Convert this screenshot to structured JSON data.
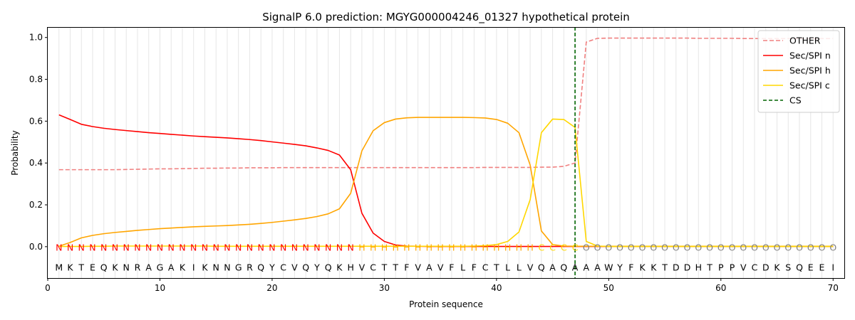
{
  "chart_data": {
    "type": "line",
    "title": "SignalP 6.0 prediction: MGYG000004246_01327 hypothetical protein",
    "xlabel": "Protein sequence",
    "ylabel": "Probability",
    "xlim": [
      0,
      71
    ],
    "ylim": [
      -0.15,
      1.05
    ],
    "x_ticks": [
      0,
      10,
      20,
      30,
      40,
      50,
      60,
      70
    ],
    "y_ticks": [
      0.0,
      0.2,
      0.4,
      0.6,
      0.8,
      1.0
    ],
    "grid": "vertical lines at each residue",
    "legend_position": "top-right",
    "sequence": "MKTEQKNRAGAKIKNNGRQYCVQYQKHVCTTFVAVFLFCTLLVQAQAAAWYFKKTDDHTPPVCDKSQEEI",
    "labels": "NNNNNNNNNNNNNNNNNNNNNNNNNNNHHHHHHHHHHHHHHHHCCCCOOOOOOOOOOOOOOOOOOOOOOO",
    "label_colors": {
      "N": "#ff0000",
      "H": "#ffa500",
      "C": "#ffd700",
      "O": "#808080"
    },
    "cleavage_site": 47,
    "series": [
      {
        "name": "OTHER",
        "color": "#f08080",
        "dash": true,
        "values": [
          0.368,
          0.368,
          0.368,
          0.368,
          0.368,
          0.368,
          0.369,
          0.37,
          0.371,
          0.372,
          0.372,
          0.373,
          0.374,
          0.375,
          0.375,
          0.376,
          0.376,
          0.377,
          0.377,
          0.377,
          0.378,
          0.378,
          0.378,
          0.378,
          0.378,
          0.378,
          0.378,
          0.378,
          0.378,
          0.378,
          0.378,
          0.378,
          0.378,
          0.378,
          0.378,
          0.378,
          0.378,
          0.378,
          0.379,
          0.379,
          0.379,
          0.379,
          0.379,
          0.38,
          0.38,
          0.384,
          0.4,
          0.978,
          0.996,
          0.997,
          0.997,
          0.997,
          0.997,
          0.997,
          0.997,
          0.997,
          0.997,
          0.996,
          0.996,
          0.996,
          0.996,
          0.995,
          0.995,
          0.995,
          0.995,
          0.995,
          0.995,
          0.995,
          0.995,
          0.995
        ]
      },
      {
        "name": "Sec/SPI n",
        "color": "#ff0000",
        "dash": false,
        "values": [
          0.63,
          0.608,
          0.585,
          0.574,
          0.566,
          0.56,
          0.555,
          0.55,
          0.545,
          0.541,
          0.537,
          0.533,
          0.529,
          0.526,
          0.523,
          0.52,
          0.516,
          0.512,
          0.507,
          0.501,
          0.495,
          0.489,
          0.482,
          0.472,
          0.46,
          0.438,
          0.368,
          0.16,
          0.065,
          0.025,
          0.008,
          0.003,
          0.002,
          0.001,
          0.001,
          0.001,
          0.001,
          0.001,
          0.001,
          0.001,
          0.001,
          0.001,
          0.001,
          0.001,
          0.001,
          0.001,
          0.001,
          0.001,
          0.001,
          0.001,
          0.001,
          0.001,
          0.001,
          0.001,
          0.001,
          0.001,
          0.001,
          0.001,
          0.001,
          0.001,
          0.001,
          0.001,
          0.001,
          0.001,
          0.001,
          0.001,
          0.001,
          0.001,
          0.001,
          0.001
        ]
      },
      {
        "name": "Sec/SPI h",
        "color": "#ffa500",
        "dash": false,
        "values": [
          0.002,
          0.02,
          0.042,
          0.054,
          0.062,
          0.068,
          0.073,
          0.078,
          0.082,
          0.086,
          0.089,
          0.092,
          0.095,
          0.097,
          0.099,
          0.101,
          0.104,
          0.107,
          0.111,
          0.116,
          0.122,
          0.128,
          0.135,
          0.144,
          0.157,
          0.181,
          0.255,
          0.458,
          0.554,
          0.593,
          0.61,
          0.616,
          0.618,
          0.618,
          0.618,
          0.618,
          0.618,
          0.617,
          0.615,
          0.608,
          0.59,
          0.545,
          0.39,
          0.075,
          0.01,
          0.003,
          0.002,
          0.002,
          0.002,
          0.002,
          0.002,
          0.002,
          0.002,
          0.002,
          0.002,
          0.002,
          0.002,
          0.002,
          0.002,
          0.002,
          0.002,
          0.002,
          0.002,
          0.002,
          0.002,
          0.002,
          0.002,
          0.002,
          0.002,
          0.002
        ]
      },
      {
        "name": "Sec/SPI c",
        "color": "#ffd700",
        "dash": false,
        "values": [
          0.001,
          0.001,
          0.001,
          0.002,
          0.002,
          0.003,
          0.003,
          0.003,
          0.003,
          0.003,
          0.003,
          0.003,
          0.003,
          0.003,
          0.002,
          0.002,
          0.002,
          0.002,
          0.002,
          0.002,
          0.002,
          0.002,
          0.002,
          0.002,
          0.002,
          0.002,
          0.002,
          0.002,
          0.002,
          0.002,
          0.002,
          0.002,
          0.002,
          0.002,
          0.002,
          0.002,
          0.002,
          0.003,
          0.005,
          0.01,
          0.025,
          0.07,
          0.225,
          0.545,
          0.61,
          0.608,
          0.57,
          0.025,
          0.003,
          0.001,
          0.001,
          0.001,
          0.001,
          0.001,
          0.001,
          0.001,
          0.001,
          0.001,
          0.001,
          0.001,
          0.001,
          0.001,
          0.001,
          0.001,
          0.001,
          0.001,
          0.001,
          0.001,
          0.001,
          0.001
        ]
      }
    ],
    "cs_legend": {
      "name": "CS",
      "color": "#006400"
    }
  }
}
